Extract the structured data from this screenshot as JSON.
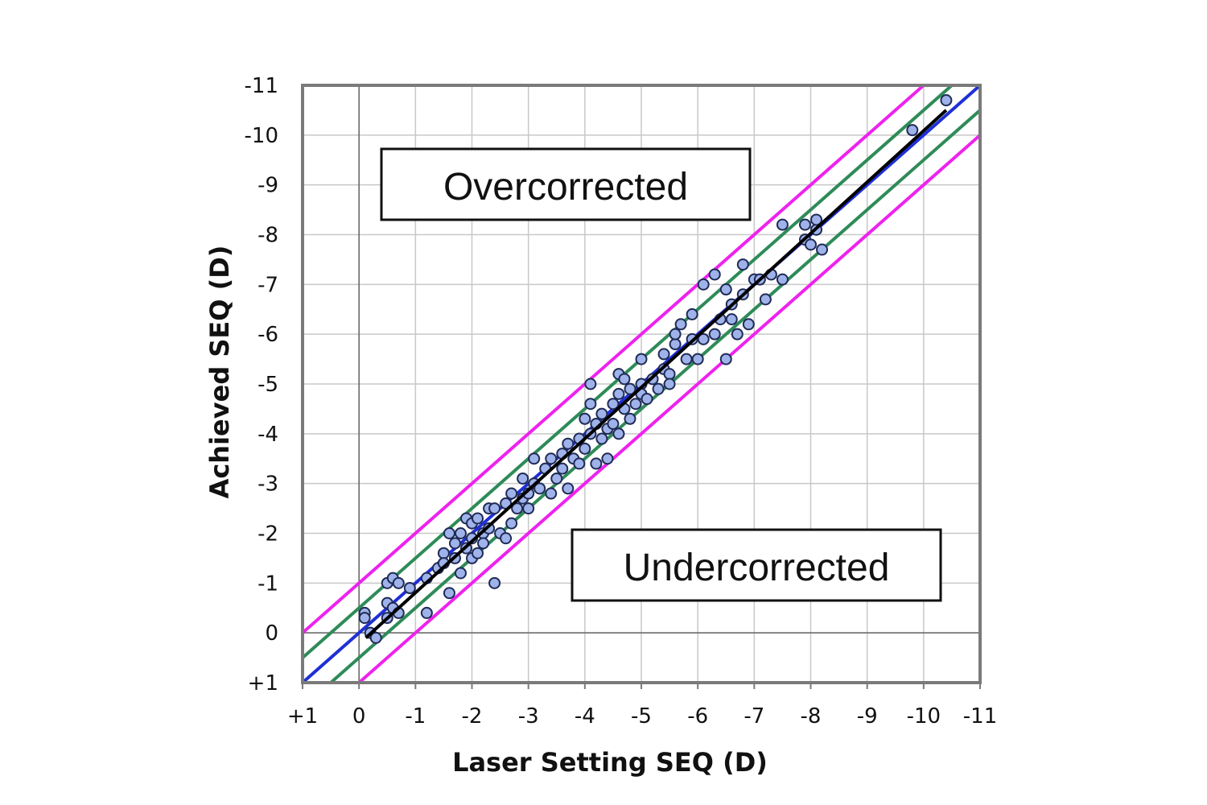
{
  "chart_data": {
    "type": "scatter",
    "xlabel": "Laser Setting SEQ (D)",
    "ylabel": "Achieved SEQ (D)",
    "xlim": [
      1,
      -11
    ],
    "ylim": [
      1,
      -11
    ],
    "x_tick_labels": [
      "+1",
      "0",
      "-1",
      "-2",
      "-3",
      "-4",
      "-5",
      "-6",
      "-7",
      "-8",
      "-9",
      "-10",
      "-11"
    ],
    "y_tick_labels": [
      "+1",
      "0",
      "-1",
      "-2",
      "-3",
      "-4",
      "-5",
      "-6",
      "-7",
      "-8",
      "-9",
      "-10",
      "-11"
    ],
    "grid": true,
    "annotations": {
      "overcorrected": "Overcorrected",
      "undercorrected": "Undercorrected"
    },
    "colors": {
      "point_fill": "#9fb3ea",
      "point_stroke": "#1f2a55",
      "identity_line": "#1f2fd6",
      "half_diopter_band": "#2e8b57",
      "one_diopter_band": "#ee22ee",
      "regression_line": "#000000",
      "grid": "#c8c8c8",
      "frame": "#7a7a7a"
    },
    "reference_lines": [
      {
        "offset": 0,
        "kind": "identity"
      },
      {
        "offset": 0.5,
        "kind": "half_diopter_band"
      },
      {
        "offset": -0.5,
        "kind": "half_diopter_band"
      },
      {
        "offset": 1,
        "kind": "one_diopter_band"
      },
      {
        "offset": -1,
        "kind": "one_diopter_band"
      }
    ],
    "regression": {
      "x": [
        -0.12,
        -10.4
      ],
      "y": [
        0.1,
        -10.5
      ]
    },
    "series": [
      {
        "points": [
          [
            -0.1,
            -0.4
          ],
          [
            -0.1,
            -0.3
          ],
          [
            -0.2,
            0
          ],
          [
            -0.3,
            0.1
          ],
          [
            -0.5,
            -0.3
          ],
          [
            -0.5,
            -1
          ],
          [
            -0.5,
            -0.6
          ],
          [
            -0.6,
            -1.1
          ],
          [
            -0.6,
            -0.5
          ],
          [
            -0.7,
            -1
          ],
          [
            -0.7,
            -0.4
          ],
          [
            -0.9,
            -0.9
          ],
          [
            -1.2,
            -0.4
          ],
          [
            -1.2,
            -1.1
          ],
          [
            -1.4,
            -1.3
          ],
          [
            -1.5,
            -1.6
          ],
          [
            -1.5,
            -1.4
          ],
          [
            -1.6,
            -0.8
          ],
          [
            -1.6,
            -2
          ],
          [
            -1.7,
            -1.8
          ],
          [
            -1.7,
            -1.5
          ],
          [
            -1.8,
            -2
          ],
          [
            -1.8,
            -1.2
          ],
          [
            -1.9,
            -1.7
          ],
          [
            -1.9,
            -2.3
          ],
          [
            -2,
            -1.5
          ],
          [
            -2,
            -1.9
          ],
          [
            -2,
            -2.2
          ],
          [
            -2.1,
            -1.6
          ],
          [
            -2.1,
            -2.3
          ],
          [
            -2.2,
            -2
          ],
          [
            -2.2,
            -1.8
          ],
          [
            -2.3,
            -2.5
          ],
          [
            -2.3,
            -2.1
          ],
          [
            -2.4,
            -1
          ],
          [
            -2.4,
            -2.5
          ],
          [
            -2.5,
            -2
          ],
          [
            -2.6,
            -1.9
          ],
          [
            -2.6,
            -2.6
          ],
          [
            -2.7,
            -2.8
          ],
          [
            -2.7,
            -2.2
          ],
          [
            -2.8,
            -2.5
          ],
          [
            -2.9,
            -3.1
          ],
          [
            -2.9,
            -2.7
          ],
          [
            -3,
            -2.8
          ],
          [
            -3,
            -2.5
          ],
          [
            -3.1,
            -3.5
          ],
          [
            -3.1,
            -3
          ],
          [
            -3.2,
            -2.9
          ],
          [
            -3.3,
            -3.3
          ],
          [
            -3.4,
            -2.8
          ],
          [
            -3.4,
            -3.5
          ],
          [
            -3.5,
            -3.1
          ],
          [
            -3.6,
            -3.6
          ],
          [
            -3.6,
            -3.3
          ],
          [
            -3.7,
            -3.8
          ],
          [
            -3.7,
            -2.9
          ],
          [
            -3.8,
            -3.5
          ],
          [
            -3.9,
            -3.4
          ],
          [
            -3.9,
            -3.9
          ],
          [
            -4,
            -3.7
          ],
          [
            -4,
            -4.3
          ],
          [
            -4.1,
            -4
          ],
          [
            -4.1,
            -4.6
          ],
          [
            -4.1,
            -5
          ],
          [
            -4.2,
            -4.2
          ],
          [
            -4.2,
            -3.4
          ],
          [
            -4.3,
            -3.9
          ],
          [
            -4.3,
            -4.4
          ],
          [
            -4.4,
            -4.1
          ],
          [
            -4.4,
            -3.5
          ],
          [
            -4.5,
            -4.6
          ],
          [
            -4.5,
            -4.2
          ],
          [
            -4.6,
            -4.8
          ],
          [
            -4.6,
            -4
          ],
          [
            -4.6,
            -5.2
          ],
          [
            -4.7,
            -4.5
          ],
          [
            -4.7,
            -5.1
          ],
          [
            -4.8,
            -4.9
          ],
          [
            -4.8,
            -4.3
          ],
          [
            -4.9,
            -4.6
          ],
          [
            -5,
            -5.5
          ],
          [
            -5,
            -5
          ],
          [
            -5,
            -4.8
          ],
          [
            -5.1,
            -4.7
          ],
          [
            -5.2,
            -5.1
          ],
          [
            -5.3,
            -4.9
          ],
          [
            -5.4,
            -5.3
          ],
          [
            -5.4,
            -5.6
          ],
          [
            -5.5,
            -5.2
          ],
          [
            -5.5,
            -5
          ],
          [
            -5.6,
            -5.8
          ],
          [
            -5.6,
            -6
          ],
          [
            -5.7,
            -6.2
          ],
          [
            -5.8,
            -5.5
          ],
          [
            -5.9,
            -5.9
          ],
          [
            -5.9,
            -6.4
          ],
          [
            -6,
            -5.5
          ],
          [
            -6.1,
            -7
          ],
          [
            -6.1,
            -5.9
          ],
          [
            -6.3,
            -7.2
          ],
          [
            -6.3,
            -6
          ],
          [
            -6.4,
            -6.3
          ],
          [
            -6.5,
            -5.5
          ],
          [
            -6.5,
            -6.9
          ],
          [
            -6.6,
            -6.3
          ],
          [
            -6.6,
            -6.6
          ],
          [
            -6.7,
            -6
          ],
          [
            -6.8,
            -7.4
          ],
          [
            -6.8,
            -6.8
          ],
          [
            -6.9,
            -6.2
          ],
          [
            -7,
            -7.1
          ],
          [
            -7.1,
            -7.1
          ],
          [
            -7.3,
            -7.2
          ],
          [
            -7.2,
            -6.7
          ],
          [
            -7.5,
            -7.1
          ],
          [
            -7.5,
            -8.2
          ],
          [
            -7.9,
            -8.2
          ],
          [
            -7.9,
            -7.9
          ],
          [
            -8,
            -7.8
          ],
          [
            -8.1,
            -8.1
          ],
          [
            -8.1,
            -8.3
          ],
          [
            -8.2,
            -7.7
          ],
          [
            -9.8,
            -10.1
          ],
          [
            -10.4,
            -10.7
          ]
        ]
      }
    ]
  }
}
